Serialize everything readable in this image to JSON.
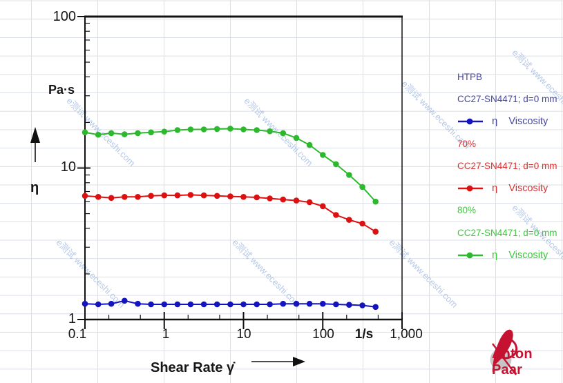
{
  "chart_data": {
    "type": "line",
    "xscale": "log",
    "yscale": "log",
    "xlim": [
      0.1,
      1000
    ],
    "ylim": [
      1,
      100
    ],
    "xlabel": "Shear Rate γ̇",
    "xlabel_unit": "1/s",
    "ylabel_symbol": "η",
    "ylabel_unit": "Pa·s",
    "x_tick_labels": [
      "0.1",
      "1",
      "10",
      "100",
      "1,000"
    ],
    "x_ticks": [
      0.1,
      1,
      10,
      100,
      1000
    ],
    "y_tick_labels": [
      "100",
      "10",
      "1"
    ],
    "y_ticks": [
      100,
      10,
      1
    ],
    "grid": "background square grid (non-log, spreadsheet style)",
    "legend_position": "right",
    "x": [
      0.1,
      0.147,
      0.215,
      0.316,
      0.464,
      0.681,
      1,
      1.47,
      2.15,
      3.16,
      4.64,
      6.81,
      10,
      14.7,
      21.5,
      31.6,
      46.4,
      68.1,
      100,
      147,
      215,
      316,
      464
    ],
    "series": [
      {
        "name": "HTPB",
        "device": "CC27-SN4471; d=0 mm",
        "quantity_symbol": "η",
        "quantity_name": "Viscosity",
        "color": "#1414be",
        "text_color": "#4646a0",
        "values": [
          1.27,
          1.26,
          1.27,
          1.33,
          1.27,
          1.26,
          1.26,
          1.26,
          1.26,
          1.26,
          1.26,
          1.26,
          1.26,
          1.26,
          1.26,
          1.27,
          1.27,
          1.27,
          1.27,
          1.26,
          1.25,
          1.24,
          1.21
        ]
      },
      {
        "name": "70%",
        "device": "CC27-SN4471; d=0 mm",
        "quantity_symbol": "η",
        "quantity_name": "Viscosity",
        "color": "#dc1010",
        "text_color": "#d73232",
        "values": [
          6.55,
          6.45,
          6.35,
          6.45,
          6.45,
          6.55,
          6.6,
          6.6,
          6.65,
          6.6,
          6.55,
          6.5,
          6.45,
          6.4,
          6.3,
          6.2,
          6.1,
          5.95,
          5.6,
          4.9,
          4.55,
          4.3,
          3.8
        ]
      },
      {
        "name": "80%",
        "device": "CC27-SN4471; d=0 mm",
        "quantity_symbol": "η",
        "quantity_name": "Viscosity",
        "color": "#2db92d",
        "text_color": "#3cc83c",
        "values": [
          17.2,
          16.6,
          17.0,
          16.7,
          17.0,
          17.2,
          17.4,
          17.8,
          18.0,
          18.0,
          18.1,
          18.2,
          18.0,
          17.8,
          17.5,
          17.0,
          15.8,
          14.2,
          12.2,
          10.6,
          9.0,
          7.5,
          6.0
        ]
      }
    ]
  },
  "watermark": {
    "text": "e测试 www.eceshi.com"
  },
  "brand": {
    "name": "Anton Paar"
  }
}
